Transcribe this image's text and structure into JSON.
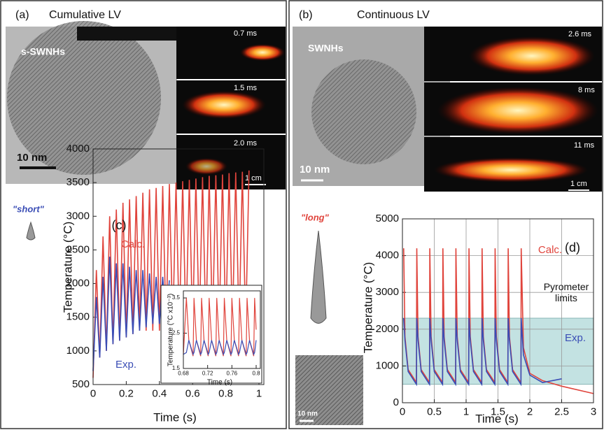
{
  "panels": {
    "a": {
      "label": "(a)",
      "title": "Cumulative LV",
      "tem_label": "s-SWNHs",
      "scale_bar": "10 nm",
      "frames": [
        "0.7 ms",
        "1.5 ms",
        "2.0 ms"
      ],
      "frame_scale": "1 cm",
      "shape_label": "\"short\""
    },
    "b": {
      "label": "(b)",
      "title": "Continuous LV",
      "tem_label": "SWNHs",
      "scale_bar": "10 nm",
      "frames": [
        "2.6 ms",
        "8 ms",
        "11 ms"
      ],
      "frame_scale": "1 cm",
      "shape_label": "\"long\"",
      "inset_scale_bar": "10 nm"
    }
  },
  "chart_data": [
    {
      "type": "line",
      "label": "(c)",
      "xlabel": "Time (s)",
      "ylabel": "Temperature (°C)",
      "xlim": [
        0,
        1
      ],
      "ylim": [
        500,
        4000
      ],
      "xticks": [
        0,
        0.2,
        0.4,
        0.6,
        0.8,
        1
      ],
      "yticks": [
        500,
        1000,
        1500,
        2000,
        2500,
        3000,
        3500,
        4000
      ],
      "grid": false,
      "annotations": [
        "Calc.",
        "Exp."
      ],
      "x": [
        0,
        0.02,
        0.04,
        0.06,
        0.08,
        0.1,
        0.12,
        0.14,
        0.16,
        0.18,
        0.2,
        0.22,
        0.24,
        0.26,
        0.28,
        0.3,
        0.32,
        0.34,
        0.36,
        0.38,
        0.4,
        0.42,
        0.44,
        0.46,
        0.48,
        0.5,
        0.52,
        0.54,
        0.56,
        0.58,
        0.6,
        0.62,
        0.64,
        0.66,
        0.68,
        0.7,
        0.72,
        0.74,
        0.76,
        0.78,
        0.8,
        0.82,
        0.84,
        0.86,
        0.88,
        0.9,
        0.92,
        0.94
      ],
      "series": [
        {
          "name": "Calc.",
          "color": "#e0443c",
          "values": [
            600,
            2200,
            900,
            2700,
            1000,
            3000,
            1100,
            3100,
            1150,
            3200,
            1200,
            3250,
            1250,
            3300,
            1300,
            3350,
            1300,
            3400,
            1300,
            3420,
            1300,
            3450,
            1300,
            3480,
            1300,
            3500,
            1300,
            3520,
            1300,
            3540,
            1300,
            3560,
            1300,
            3580,
            1300,
            3600,
            1300,
            3610,
            1300,
            3620,
            1300,
            3640,
            1300,
            3650,
            1300,
            3660,
            1300,
            3680
          ]
        },
        {
          "name": "Exp.",
          "color": "#3a4db5",
          "values": [
            700,
            1800,
            900,
            2100,
            1000,
            2400,
            1100,
            2300,
            1150,
            2300,
            1200,
            2250,
            1250,
            2200,
            1300,
            2200,
            1350,
            2150,
            1400,
            2100,
            1400,
            2100,
            1450,
            2050,
            null,
            null,
            null,
            null,
            null,
            null,
            null,
            null,
            null,
            null,
            null,
            null,
            null,
            null,
            null,
            null,
            null,
            null,
            null,
            null,
            null,
            null,
            null,
            null
          ]
        }
      ]
    },
    {
      "type": "line",
      "xlabel": "Time (s)",
      "ylabel": "Temperature (°C x10⁻³)",
      "xlim": [
        0.68,
        0.8
      ],
      "ylim": [
        1.5,
        3.7
      ],
      "xticks": [
        0.68,
        0.72,
        0.76,
        0.8
      ],
      "yticks": [
        1.5,
        2.5,
        3.5
      ],
      "grid": false,
      "x": [
        0.68,
        0.685,
        0.689,
        0.696,
        0.6975,
        0.7015,
        0.7085,
        0.71,
        0.714,
        0.721,
        0.7225,
        0.7265,
        0.7335,
        0.735,
        0.739,
        0.746,
        0.7475,
        0.7515,
        0.7585,
        0.76,
        0.764,
        0.771,
        0.7725,
        0.7765,
        0.7835,
        0.785,
        0.789,
        0.796,
        0.7975,
        0.8
      ],
      "series": [
        {
          "name": "Calc.",
          "color": "#e0443c",
          "values": [
            1.9,
            3.5,
            2.3,
            1.85,
            3.5,
            2.3,
            1.85,
            3.5,
            2.3,
            1.85,
            3.5,
            2.3,
            1.85,
            3.5,
            2.3,
            1.85,
            3.5,
            2.3,
            1.85,
            3.5,
            2.3,
            1.85,
            3.5,
            2.3,
            1.85,
            3.5,
            2.3,
            1.85,
            3.5,
            2.6
          ]
        },
        {
          "name": "Exp.",
          "color": "#3a4db5",
          "values": [
            1.9,
            1.95,
            2.3,
            1.9,
            1.95,
            2.3,
            1.9,
            1.95,
            2.3,
            1.9,
            1.95,
            2.3,
            1.9,
            1.95,
            2.3,
            1.9,
            1.95,
            2.3,
            1.9,
            1.95,
            2.3,
            1.9,
            1.95,
            2.3,
            1.9,
            1.95,
            2.3,
            1.9,
            1.95,
            2.3
          ]
        }
      ]
    },
    {
      "type": "line",
      "label": "(d)",
      "xlabel": "Time (s)",
      "ylabel": "Temperature (°C)",
      "xlim": [
        0,
        3
      ],
      "ylim": [
        0,
        5000
      ],
      "xticks": [
        0,
        0.5,
        1,
        1.5,
        2,
        2.5,
        3
      ],
      "yticks": [
        0,
        1000,
        2000,
        3000,
        4000,
        5000
      ],
      "grid": true,
      "pyrometer_limits": [
        500,
        2300
      ],
      "shade_color": "#c3e2e2",
      "annotations": [
        "Calc.",
        "Pyrometer limits",
        "Exp."
      ],
      "x": [
        0.02,
        0.04,
        0.09,
        0.22,
        0.225,
        0.245,
        0.295,
        0.425,
        0.43,
        0.45,
        0.5,
        0.63,
        0.635,
        0.655,
        0.705,
        0.835,
        0.84,
        0.86,
        0.91,
        1.04,
        1.045,
        1.065,
        1.115,
        1.245,
        1.25,
        1.27,
        1.32,
        1.45,
        1.455,
        1.475,
        1.525,
        1.655,
        1.66,
        1.68,
        1.73,
        1.86,
        1.865,
        1.9,
        2,
        2.2,
        2.5,
        3
      ],
      "series": [
        {
          "name": "Calc.",
          "color": "#e0443c",
          "values": [
            4200,
            1800,
            900,
            550,
            4200,
            1800,
            900,
            550,
            4200,
            1800,
            900,
            550,
            4200,
            1800,
            900,
            550,
            4200,
            1800,
            900,
            550,
            4200,
            1800,
            900,
            550,
            4200,
            1800,
            900,
            550,
            4200,
            1800,
            900,
            550,
            4200,
            1800,
            900,
            550,
            4200,
            1500,
            800,
            600,
            450,
            250
          ]
        },
        {
          "name": "Exp.",
          "color": "#3a4db5",
          "values": [
            2300,
            1700,
            850,
            500,
            2300,
            1700,
            850,
            500,
            2300,
            1700,
            850,
            500,
            2300,
            1700,
            850,
            500,
            2300,
            1700,
            850,
            500,
            2300,
            1700,
            850,
            500,
            2300,
            1700,
            850,
            500,
            2300,
            1700,
            850,
            500,
            2300,
            1700,
            850,
            500,
            2300,
            1300,
            750,
            550,
            650,
            null
          ]
        }
      ]
    }
  ]
}
